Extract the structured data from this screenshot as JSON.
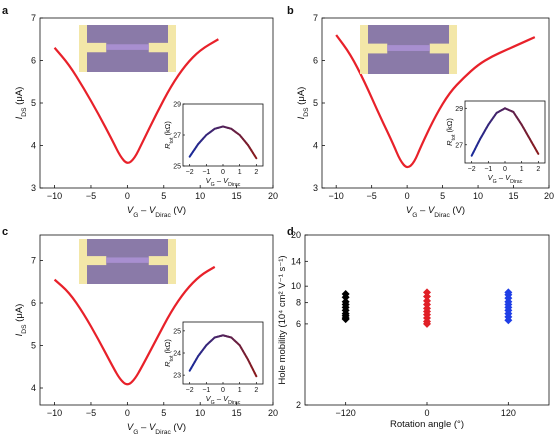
{
  "chart_data": [
    {
      "panel": "a",
      "type": "line",
      "xlabel": "V_G – V_Dirac (V)",
      "ylabel": "I_DS (μA)",
      "xlim": [
        -12,
        20
      ],
      "xticks": [
        -10,
        -5,
        0,
        5,
        10,
        15,
        20
      ],
      "ylim": [
        3,
        7
      ],
      "yticks": [
        3,
        4,
        5,
        6,
        7
      ],
      "color": "#e8212a",
      "series": [
        {
          "x": [
            -10,
            -8,
            -6,
            -4,
            -2,
            -1,
            0,
            1,
            2,
            4,
            6,
            8,
            10,
            12.5
          ],
          "y": [
            6.3,
            5.9,
            5.35,
            4.75,
            4.1,
            3.75,
            3.55,
            3.7,
            4.05,
            4.75,
            5.4,
            5.9,
            6.25,
            6.5
          ]
        }
      ],
      "inset": {
        "xlabel": "V_G – V_Dirac",
        "ylabel": "R_tot (kΩ)",
        "xlim": [
          -2.4,
          2.4
        ],
        "xticks": [
          -2,
          -1,
          0,
          1,
          2
        ],
        "ylim": [
          25,
          29
        ],
        "yticks": [
          25,
          27,
          29
        ],
        "x": [
          -2,
          -1.5,
          -1,
          -0.5,
          0,
          0.5,
          1,
          1.5,
          2
        ],
        "y": [
          25.6,
          26.4,
          27.0,
          27.4,
          27.55,
          27.4,
          27.0,
          26.35,
          25.5
        ]
      }
    },
    {
      "panel": "b",
      "type": "line",
      "xlabel": "V_G – V_Dirac (V)",
      "ylabel": "I_DS (μA)",
      "xlim": [
        -12,
        20
      ],
      "xticks": [
        -10,
        -5,
        0,
        5,
        10,
        15,
        20
      ],
      "ylim": [
        3,
        7
      ],
      "yticks": [
        3,
        4,
        5,
        6,
        7
      ],
      "color": "#e8212a",
      "series": [
        {
          "x": [
            -10,
            -8,
            -6,
            -4,
            -2,
            -1,
            0,
            1,
            2,
            4,
            6,
            8,
            10,
            12,
            14,
            16,
            18
          ],
          "y": [
            6.6,
            6.15,
            5.5,
            4.75,
            4.05,
            3.65,
            3.45,
            3.6,
            4.0,
            4.7,
            5.25,
            5.6,
            5.9,
            6.1,
            6.25,
            6.4,
            6.55
          ]
        }
      ],
      "inset": {
        "xlabel": "V_G – V_Dirac",
        "ylabel": "R_tot (kΩ)",
        "xlim": [
          -2.4,
          2.4
        ],
        "xticks": [
          -2,
          -1,
          0,
          1,
          2
        ],
        "ylim": [
          26,
          29.4
        ],
        "yticks": [
          27,
          29
        ],
        "x": [
          -2,
          -1.5,
          -1,
          -0.5,
          0,
          0.5,
          1,
          1.5,
          2
        ],
        "y": [
          26.4,
          27.3,
          28.1,
          28.75,
          29.0,
          28.8,
          28.1,
          27.3,
          26.5
        ]
      }
    },
    {
      "panel": "c",
      "type": "line",
      "xlabel": "V_G – V_Dirac (V)",
      "ylabel": "I_DS (μA)",
      "xlim": [
        -12,
        20
      ],
      "xticks": [
        -10,
        -5,
        0,
        5,
        10,
        15,
        20
      ],
      "ylim": [
        3.6,
        7.6
      ],
      "yticks": [
        4,
        5,
        6,
        7
      ],
      "color": "#e8212a",
      "series": [
        {
          "x": [
            -10,
            -8,
            -6,
            -4,
            -2,
            -1,
            0,
            1,
            2,
            4,
            6,
            8,
            10,
            12
          ],
          "y": [
            6.55,
            6.25,
            5.75,
            5.15,
            4.5,
            4.2,
            4.05,
            4.2,
            4.5,
            5.15,
            5.8,
            6.3,
            6.65,
            6.85
          ]
        }
      ],
      "inset": {
        "xlabel": "V_G – V_Dirac",
        "ylabel": "R_tot (kΩ)",
        "xlim": [
          -2.4,
          2.4
        ],
        "xticks": [
          -2,
          -1,
          0,
          1,
          2
        ],
        "ylim": [
          22.6,
          25.4
        ],
        "yticks": [
          23,
          24,
          25
        ],
        "x": [
          -2,
          -1.5,
          -1,
          -0.5,
          0,
          0.5,
          1,
          1.5,
          2
        ],
        "y": [
          23.2,
          23.85,
          24.35,
          24.7,
          24.8,
          24.7,
          24.35,
          23.7,
          22.95
        ]
      }
    },
    {
      "panel": "d",
      "type": "scatter",
      "xlabel": "Rotation angle (°)",
      "ylabel": "Hole mobility (10⁴ cm² V⁻¹ s⁻¹)",
      "xlim": [
        -180,
        180
      ],
      "xticks": [
        -120,
        0,
        120
      ],
      "ylim": [
        2,
        20
      ],
      "yscale": "log",
      "yticks": [
        2,
        6,
        8,
        10,
        14,
        20
      ],
      "series": [
        {
          "x": -120,
          "color": "#000000",
          "marker": "diamond",
          "values": [
            6.4,
            6.5,
            6.7,
            6.9,
            7.2,
            7.5,
            7.8,
            8.1,
            8.6,
            9.0
          ]
        },
        {
          "x": 0,
          "color": "#e01f26",
          "marker": "diamond",
          "values": [
            6.0,
            6.2,
            6.5,
            6.8,
            7.1,
            7.4,
            7.8,
            8.2,
            8.7,
            9.2
          ]
        },
        {
          "x": 120,
          "color": "#1f3ee6",
          "marker": "diamond",
          "values": [
            6.3,
            6.6,
            6.9,
            7.2,
            7.5,
            7.8,
            8.1,
            8.5,
            8.9,
            9.2
          ]
        }
      ]
    }
  ],
  "labels": {
    "panel_a": "a",
    "panel_b": "b",
    "panel_c": "c",
    "panel_d": "d",
    "ids_main": "I",
    "ids_sub": "DS",
    "ids_unit": " (μA)",
    "vg_main": "V",
    "vg_sub": "G",
    "vg_mid": " – ",
    "vdirac_main": "V",
    "vdirac_sub": "Dirac",
    "volt_unit": " (V)",
    "rtot_main": "R",
    "rtot_sub": "tot",
    "rtot_unit": " (kΩ)",
    "mobility": "Hole mobility (10⁴ cm² V⁻¹ s⁻¹)",
    "rotation": "Rotation angle (°)"
  },
  "colors": {
    "curve": "#e8212a",
    "inset_start": "#1a2a9a",
    "inset_end": "#8b1a1a",
    "device_bg": "#8a7aa8",
    "electrode": "#f3e7a8"
  }
}
